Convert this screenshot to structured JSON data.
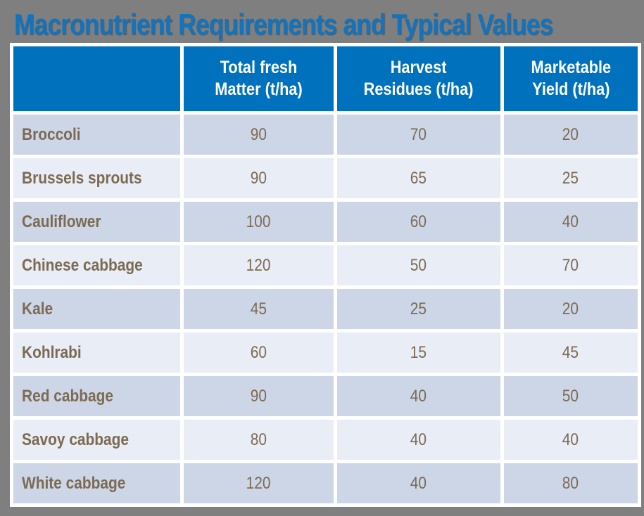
{
  "slide": {
    "title": "Macronutrient Requirements and Typical Values"
  },
  "colors": {
    "page_background": "#7F7F7F",
    "title_text": "#1273BE",
    "header_background": "#0071BC",
    "header_text": "#FFFFFF",
    "row_dark": "#CCD6E7",
    "row_light": "#E9EDF5",
    "body_text": "#7C6A53",
    "grid_gap": "#FFFFFF"
  },
  "table": {
    "columns": [
      {
        "label": ""
      },
      {
        "label": "Total fresh\nMatter (t/ha)"
      },
      {
        "label": "Harvest\nResidues (t/ha)"
      },
      {
        "label": "Marketable\nYield (t/ha)"
      }
    ],
    "rows": [
      {
        "label": "Broccoli",
        "total_fresh_matter": "90",
        "harvest_residues": "70",
        "marketable_yield": "20"
      },
      {
        "label": "Brussels sprouts",
        "total_fresh_matter": "90",
        "harvest_residues": "65",
        "marketable_yield": "25"
      },
      {
        "label": "Cauliflower",
        "total_fresh_matter": "100",
        "harvest_residues": "60",
        "marketable_yield": "40"
      },
      {
        "label": "Chinese cabbage",
        "total_fresh_matter": "120",
        "harvest_residues": "50",
        "marketable_yield": "70"
      },
      {
        "label": "Kale",
        "total_fresh_matter": "45",
        "harvest_residues": "25",
        "marketable_yield": "20"
      },
      {
        "label": "Kohlrabi",
        "total_fresh_matter": "60",
        "harvest_residues": "15",
        "marketable_yield": "45"
      },
      {
        "label": "Red cabbage",
        "total_fresh_matter": "90",
        "harvest_residues": "40",
        "marketable_yield": "50"
      },
      {
        "label": "Savoy cabbage",
        "total_fresh_matter": "80",
        "harvest_residues": "40",
        "marketable_yield": "40"
      },
      {
        "label": "White cabbage",
        "total_fresh_matter": "120",
        "harvest_residues": "40",
        "marketable_yield": "80"
      }
    ]
  },
  "chart_data": {
    "type": "table",
    "title": "Macronutrient Requirements and Typical Values",
    "columns": [
      "",
      "Total fresh Matter (t/ha)",
      "Harvest Residues (t/ha)",
      "Marketable Yield (t/ha)"
    ],
    "rows": [
      [
        "Broccoli",
        90,
        70,
        20
      ],
      [
        "Brussels sprouts",
        90,
        65,
        25
      ],
      [
        "Cauliflower",
        100,
        60,
        40
      ],
      [
        "Chinese cabbage",
        120,
        50,
        70
      ],
      [
        "Kale",
        45,
        25,
        20
      ],
      [
        "Kohlrabi",
        60,
        15,
        45
      ],
      [
        "Red cabbage",
        90,
        40,
        50
      ],
      [
        "Savoy cabbage",
        80,
        40,
        40
      ],
      [
        "White cabbage",
        120,
        40,
        80
      ]
    ]
  }
}
